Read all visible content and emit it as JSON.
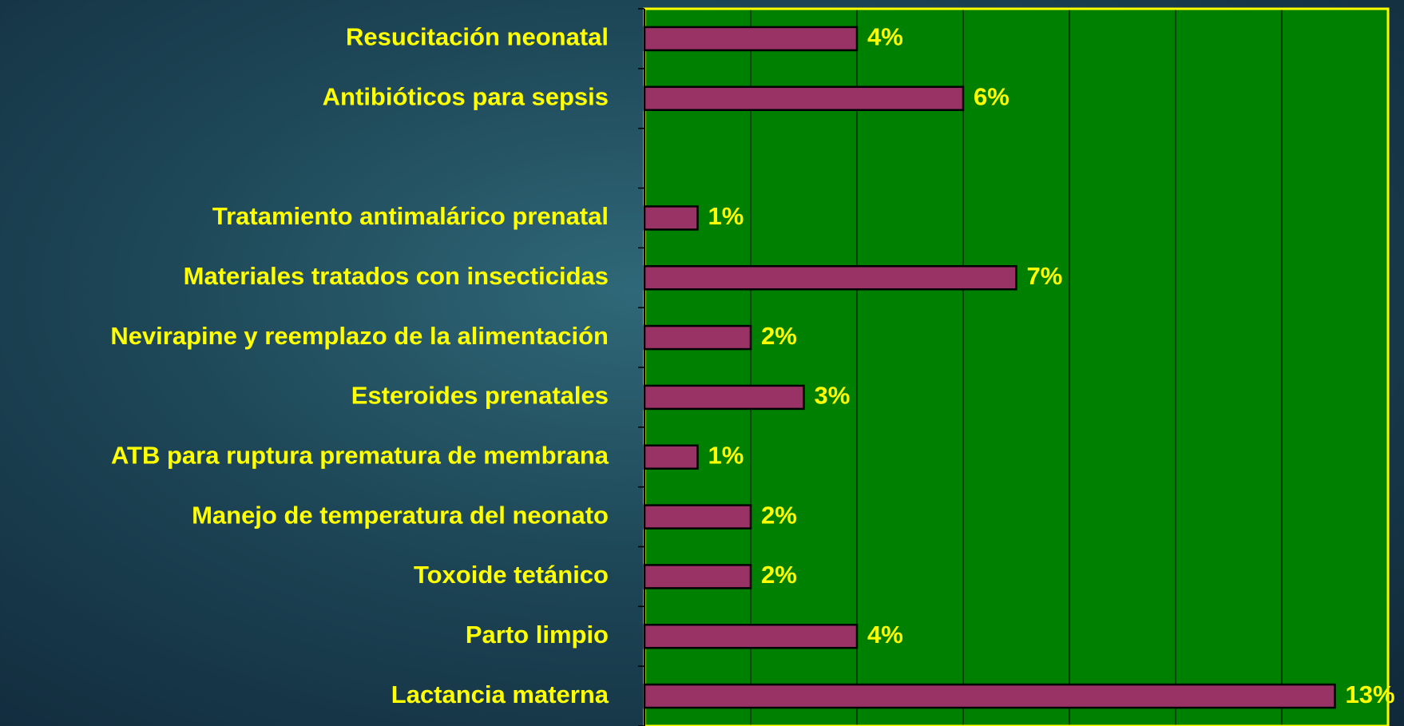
{
  "chart_data": {
    "type": "barh",
    "categories": [
      "Resucitación neonatal",
      "Antibióticos para sepsis",
      null,
      "Tratamiento antimalárico prenatal",
      "Materiales tratados con insecticidas",
      "Nevirapine y reemplazo de la alimentación",
      "Esteroides prenatales",
      "ATB para ruptura prematura de membrana",
      "Manejo de temperatura del neonato",
      "Toxoide tetánico",
      "Parto limpio",
      "Lactancia materna"
    ],
    "values": [
      4,
      6,
      null,
      1,
      7,
      2,
      3,
      1,
      2,
      2,
      4,
      13
    ],
    "value_labels": [
      "4%",
      "6%",
      null,
      "1%",
      "7%",
      "2%",
      "3%",
      "1%",
      "2%",
      "2%",
      "4%",
      "13%"
    ],
    "color": "#993366",
    "xlim": [
      0,
      14
    ],
    "xticks": [
      0,
      2,
      4,
      6,
      8,
      10,
      12,
      14
    ],
    "grid": true
  }
}
